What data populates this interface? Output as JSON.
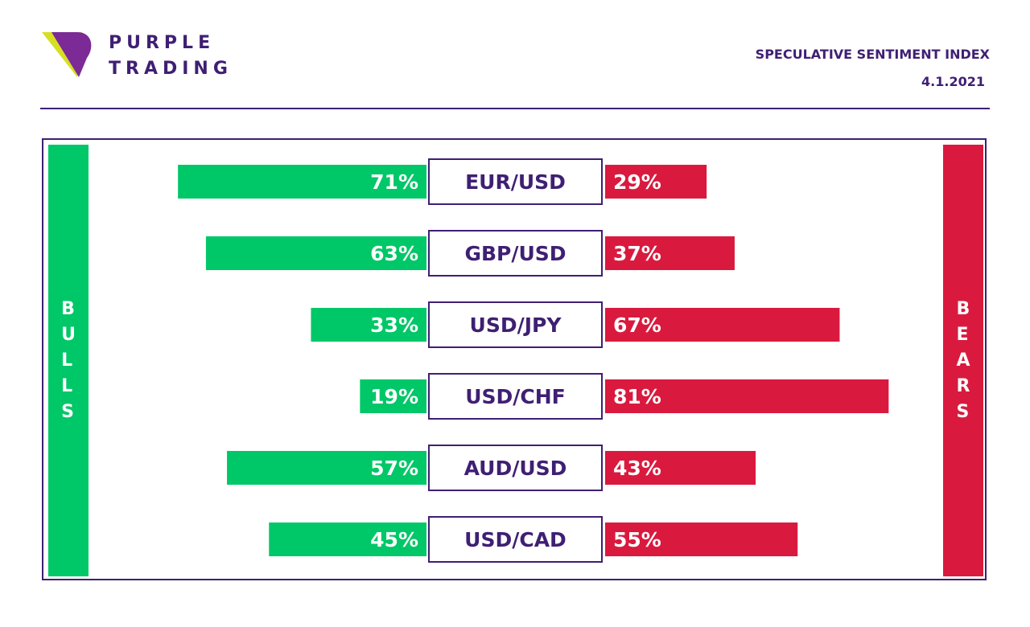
{
  "brand": {
    "line1": "PURPLE",
    "line2": "TRADING",
    "logo_icon": "purple-trading-logo-icon",
    "colors": {
      "purple": "#7b2a96",
      "yellow": "#d6df23",
      "text": "#3f1f73"
    }
  },
  "header": {
    "title": "SPECULATIVE SENTIMENT INDEX",
    "date": "4.1.2021"
  },
  "colors": {
    "bull": "#00c767",
    "bear": "#d91a3e",
    "frame": "#3f1f73"
  },
  "side_labels": {
    "bulls": "BULLS",
    "bears": "BEARS"
  },
  "chart_data": {
    "type": "bar",
    "title": "",
    "categories": [
      "EUR/USD",
      "GBP/USD",
      "USD/JPY",
      "USD/CHF",
      "AUD/USD",
      "USD/CAD"
    ],
    "series": [
      {
        "name": "BULLS",
        "values": [
          71,
          63,
          33,
          19,
          57,
          45
        ],
        "labels": [
          "71%",
          "63%",
          "33%",
          "19%",
          "57%",
          "45%"
        ]
      },
      {
        "name": "BEARS",
        "values": [
          29,
          37,
          67,
          81,
          43,
          55
        ],
        "labels": [
          "29%",
          "37%",
          "67%",
          "81%",
          "43%",
          "55%"
        ]
      }
    ],
    "ylim": [
      0,
      100
    ],
    "grid": false,
    "legend": "none"
  }
}
